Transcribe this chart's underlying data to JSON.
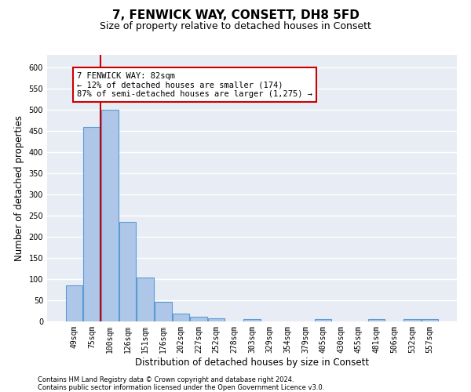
{
  "title_line1": "7, FENWICK WAY, CONSETT, DH8 5FD",
  "title_line2": "Size of property relative to detached houses in Consett",
  "xlabel": "Distribution of detached houses by size in Consett",
  "ylabel": "Number of detached properties",
  "categories": [
    "49sqm",
    "75sqm",
    "100sqm",
    "126sqm",
    "151sqm",
    "176sqm",
    "202sqm",
    "227sqm",
    "252sqm",
    "278sqm",
    "303sqm",
    "329sqm",
    "354sqm",
    "379sqm",
    "405sqm",
    "430sqm",
    "455sqm",
    "481sqm",
    "506sqm",
    "532sqm",
    "557sqm"
  ],
  "values": [
    86,
    460,
    500,
    235,
    103,
    47,
    18,
    12,
    8,
    0,
    5,
    0,
    0,
    0,
    5,
    0,
    0,
    5,
    0,
    5,
    5
  ],
  "bar_color": "#aec6e8",
  "bar_edge_color": "#5b9bd5",
  "vline_x": 1.5,
  "vline_color": "#cc0000",
  "annotation_text": "7 FENWICK WAY: 82sqm\n← 12% of detached houses are smaller (174)\n87% of semi-detached houses are larger (1,275) →",
  "annotation_box_color": "white",
  "annotation_box_edge_color": "#cc0000",
  "ylim": [
    0,
    630
  ],
  "yticks": [
    0,
    50,
    100,
    150,
    200,
    250,
    300,
    350,
    400,
    450,
    500,
    550,
    600
  ],
  "background_color": "#e8edf5",
  "grid_color": "white",
  "footer_line1": "Contains HM Land Registry data © Crown copyright and database right 2024.",
  "footer_line2": "Contains public sector information licensed under the Open Government Licence v3.0.",
  "title_fontsize": 11,
  "subtitle_fontsize": 9,
  "tick_fontsize": 7,
  "xlabel_fontsize": 8.5,
  "ylabel_fontsize": 8.5,
  "annotation_fontsize": 7.5,
  "footer_fontsize": 6
}
